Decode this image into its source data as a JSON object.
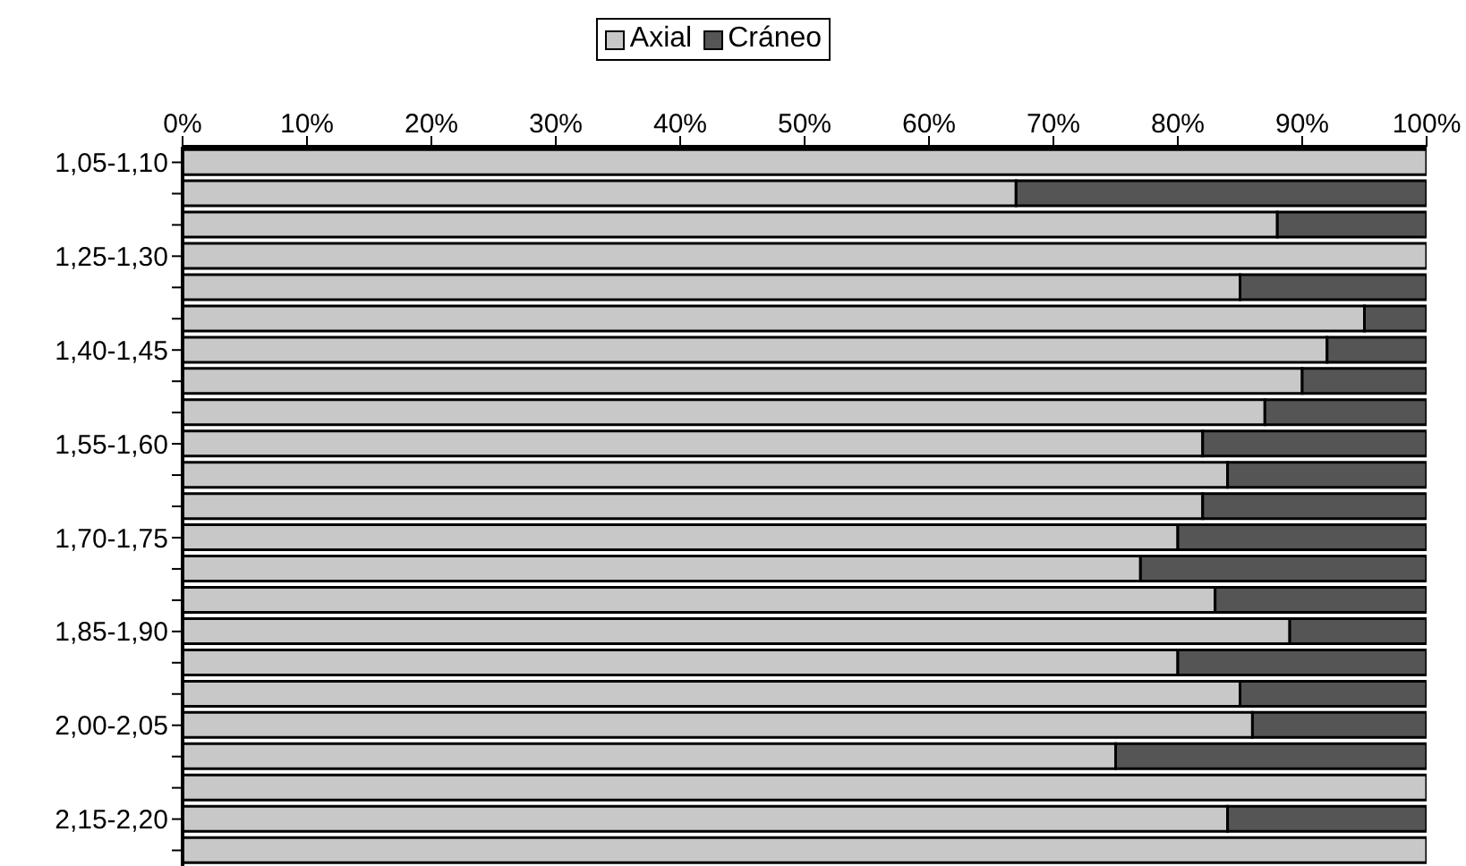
{
  "chart_data": {
    "type": "bar",
    "orientation": "horizontal",
    "stacked": true,
    "categories": [
      "1,05-1,10",
      null,
      null,
      "1,25-1,30",
      null,
      null,
      "1,40-1,45",
      null,
      null,
      "1,55-1,60",
      null,
      null,
      "1,70-1,75",
      null,
      null,
      "1,85-1,90",
      null,
      null,
      "2,00-2,05",
      null,
      null,
      "2,15-2,20",
      null
    ],
    "series": [
      {
        "name": "Axial",
        "color": "#c8c8c8",
        "values": [
          100,
          67,
          88,
          100,
          85,
          95,
          92,
          90,
          87,
          82,
          84,
          82,
          80,
          77,
          83,
          89,
          80,
          85,
          86,
          75,
          100,
          84,
          100
        ]
      },
      {
        "name": "Cráneo",
        "color": "#555555",
        "values": [
          0,
          33,
          12,
          0,
          15,
          5,
          8,
          10,
          13,
          18,
          16,
          18,
          20,
          23,
          17,
          11,
          20,
          15,
          14,
          25,
          0,
          16,
          0
        ]
      }
    ],
    "xlim": [
      0,
      100
    ],
    "xticks": [
      {
        "value": 0,
        "label": "0%"
      },
      {
        "value": 10,
        "label": "10%"
      },
      {
        "value": 20,
        "label": "20%"
      },
      {
        "value": 30,
        "label": "30%"
      },
      {
        "value": 40,
        "label": "40%"
      },
      {
        "value": 50,
        "label": "50%"
      },
      {
        "value": 60,
        "label": "60%"
      },
      {
        "value": 70,
        "label": "70%"
      },
      {
        "value": 80,
        "label": "80%"
      },
      {
        "value": 90,
        "label": "90%"
      },
      {
        "value": 100,
        "label": "100%"
      }
    ],
    "legend": "top",
    "grid": false
  }
}
